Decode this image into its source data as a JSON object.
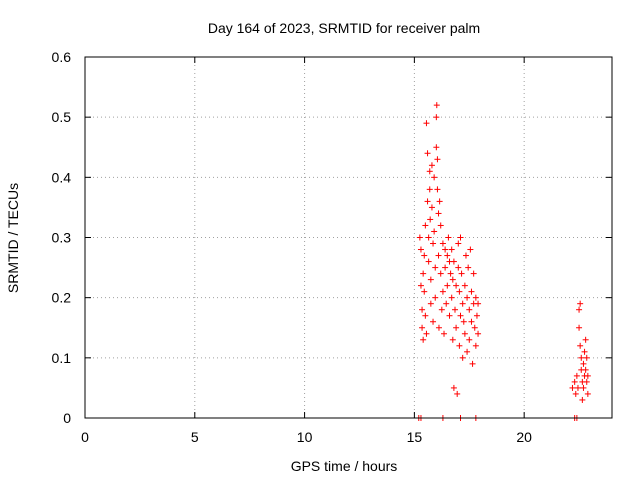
{
  "chart_data": {
    "type": "scatter",
    "title": "Day 164 of 2023, SRMTID for receiver palm",
    "xlabel": "GPS time / hours",
    "ylabel": "SRMTID / TECUs",
    "xlim": [
      0,
      24
    ],
    "ylim": [
      0,
      0.6
    ],
    "xticks": [
      0,
      5,
      10,
      15,
      20
    ],
    "xtick_labels": [
      "0",
      "5",
      "10",
      "15",
      "20"
    ],
    "yticks": [
      0,
      0.1,
      0.2,
      0.3,
      0.4,
      0.5,
      0.6
    ],
    "ytick_labels": [
      "0",
      "0.1",
      "0.2",
      "0.3",
      "0.4",
      "0.5",
      "0.6"
    ],
    "grid": true,
    "marker": "+",
    "series": [
      {
        "name": "SRMTID",
        "color": "#ff0000",
        "points": [
          [
            15.2,
            0.0
          ],
          [
            15.3,
            0.0
          ],
          [
            16.3,
            0.0
          ],
          [
            17.1,
            0.0
          ],
          [
            17.8,
            0.0
          ],
          [
            22.3,
            0.0
          ],
          [
            22.4,
            0.0
          ],
          [
            15.25,
            0.3
          ],
          [
            15.3,
            0.28
          ],
          [
            15.3,
            0.22
          ],
          [
            15.35,
            0.18
          ],
          [
            15.35,
            0.15
          ],
          [
            15.4,
            0.13
          ],
          [
            15.4,
            0.24
          ],
          [
            15.45,
            0.27
          ],
          [
            15.45,
            0.21
          ],
          [
            15.5,
            0.32
          ],
          [
            15.5,
            0.17
          ],
          [
            15.55,
            0.14
          ],
          [
            15.55,
            0.49
          ],
          [
            15.6,
            0.44
          ],
          [
            15.6,
            0.36
          ],
          [
            15.65,
            0.3
          ],
          [
            15.65,
            0.26
          ],
          [
            15.7,
            0.41
          ],
          [
            15.7,
            0.38
          ],
          [
            15.72,
            0.33
          ],
          [
            15.75,
            0.23
          ],
          [
            15.75,
            0.19
          ],
          [
            15.8,
            0.42
          ],
          [
            15.8,
            0.35
          ],
          [
            15.85,
            0.29
          ],
          [
            15.85,
            0.16
          ],
          [
            15.9,
            0.4
          ],
          [
            15.9,
            0.31
          ],
          [
            15.95,
            0.25
          ],
          [
            15.95,
            0.2
          ],
          [
            16.0,
            0.5
          ],
          [
            16.0,
            0.45
          ],
          [
            16.02,
            0.52
          ],
          [
            16.05,
            0.43
          ],
          [
            16.05,
            0.38
          ],
          [
            16.1,
            0.34
          ],
          [
            16.1,
            0.27
          ],
          [
            16.12,
            0.15
          ],
          [
            16.15,
            0.36
          ],
          [
            16.2,
            0.32
          ],
          [
            16.2,
            0.24
          ],
          [
            16.25,
            0.18
          ],
          [
            16.3,
            0.29
          ],
          [
            16.3,
            0.21
          ],
          [
            16.35,
            0.14
          ],
          [
            16.4,
            0.28
          ],
          [
            16.4,
            0.25
          ],
          [
            16.45,
            0.19
          ],
          [
            16.5,
            0.27
          ],
          [
            16.5,
            0.22
          ],
          [
            16.55,
            0.3
          ],
          [
            16.6,
            0.26
          ],
          [
            16.6,
            0.17
          ],
          [
            16.65,
            0.24
          ],
          [
            16.7,
            0.28
          ],
          [
            16.7,
            0.2
          ],
          [
            16.75,
            0.23
          ],
          [
            16.75,
            0.13
          ],
          [
            16.8,
            0.05
          ],
          [
            16.8,
            0.26
          ],
          [
            16.85,
            0.18
          ],
          [
            16.9,
            0.22
          ],
          [
            16.9,
            0.15
          ],
          [
            16.95,
            0.04
          ],
          [
            17.0,
            0.29
          ],
          [
            17.0,
            0.25
          ],
          [
            17.05,
            0.21
          ],
          [
            17.05,
            0.12
          ],
          [
            17.1,
            0.3
          ],
          [
            17.1,
            0.17
          ],
          [
            17.15,
            0.24
          ],
          [
            17.2,
            0.19
          ],
          [
            17.2,
            0.1
          ],
          [
            17.25,
            0.16
          ],
          [
            17.3,
            0.22
          ],
          [
            17.3,
            0.14
          ],
          [
            17.35,
            0.27
          ],
          [
            17.4,
            0.2
          ],
          [
            17.4,
            0.11
          ],
          [
            17.45,
            0.25
          ],
          [
            17.5,
            0.18
          ],
          [
            17.5,
            0.13
          ],
          [
            17.55,
            0.28
          ],
          [
            17.6,
            0.21
          ],
          [
            17.6,
            0.16
          ],
          [
            17.65,
            0.09
          ],
          [
            17.7,
            0.24
          ],
          [
            17.7,
            0.19
          ],
          [
            17.75,
            0.15
          ],
          [
            17.8,
            0.2
          ],
          [
            17.8,
            0.12
          ],
          [
            17.85,
            0.17
          ],
          [
            17.9,
            0.19
          ],
          [
            17.9,
            0.14
          ],
          [
            22.2,
            0.05
          ],
          [
            22.3,
            0.06
          ],
          [
            22.35,
            0.04
          ],
          [
            22.4,
            0.07
          ],
          [
            22.45,
            0.05
          ],
          [
            22.5,
            0.18
          ],
          [
            22.5,
            0.15
          ],
          [
            22.55,
            0.19
          ],
          [
            22.55,
            0.12
          ],
          [
            22.6,
            0.1
          ],
          [
            22.6,
            0.08
          ],
          [
            22.65,
            0.06
          ],
          [
            22.65,
            0.03
          ],
          [
            22.7,
            0.09
          ],
          [
            22.7,
            0.05
          ],
          [
            22.75,
            0.11
          ],
          [
            22.75,
            0.07
          ],
          [
            22.8,
            0.13
          ],
          [
            22.8,
            0.08
          ],
          [
            22.85,
            0.06
          ],
          [
            22.85,
            0.1
          ],
          [
            22.9,
            0.07
          ],
          [
            22.9,
            0.04
          ]
        ]
      }
    ]
  }
}
